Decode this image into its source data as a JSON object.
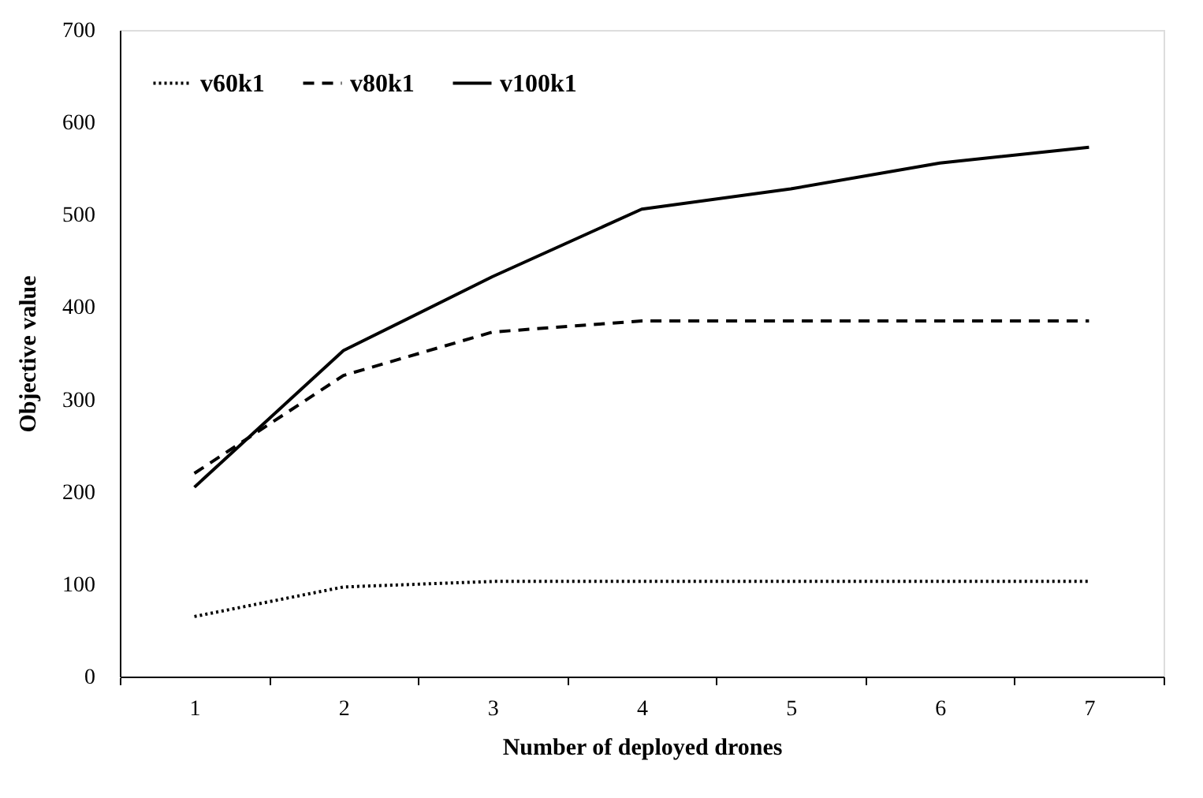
{
  "chart_data": {
    "type": "line",
    "xlabel": "Number of deployed drones",
    "ylabel": "Objective value",
    "categories": [
      "1",
      "2",
      "3",
      "4",
      "5",
      "6",
      "7"
    ],
    "ylim": [
      0,
      700
    ],
    "yticks": [
      0,
      100,
      200,
      300,
      400,
      500,
      600,
      700
    ],
    "grid": false,
    "legend": "top left",
    "marker": "none",
    "series": [
      {
        "name": "v60k1",
        "color": "#000000",
        "line_style": "dotted",
        "values": [
          65,
          97,
          103,
          103,
          103,
          103,
          103
        ]
      },
      {
        "name": "v80k1",
        "color": "#000000",
        "line_style": "dashed",
        "values": [
          220,
          326,
          373,
          385,
          385,
          385,
          385
        ]
      },
      {
        "name": "v100k1",
        "color": "#000000",
        "line_style": "solid",
        "values": [
          205,
          353,
          433,
          506,
          528,
          556,
          573
        ]
      }
    ]
  }
}
